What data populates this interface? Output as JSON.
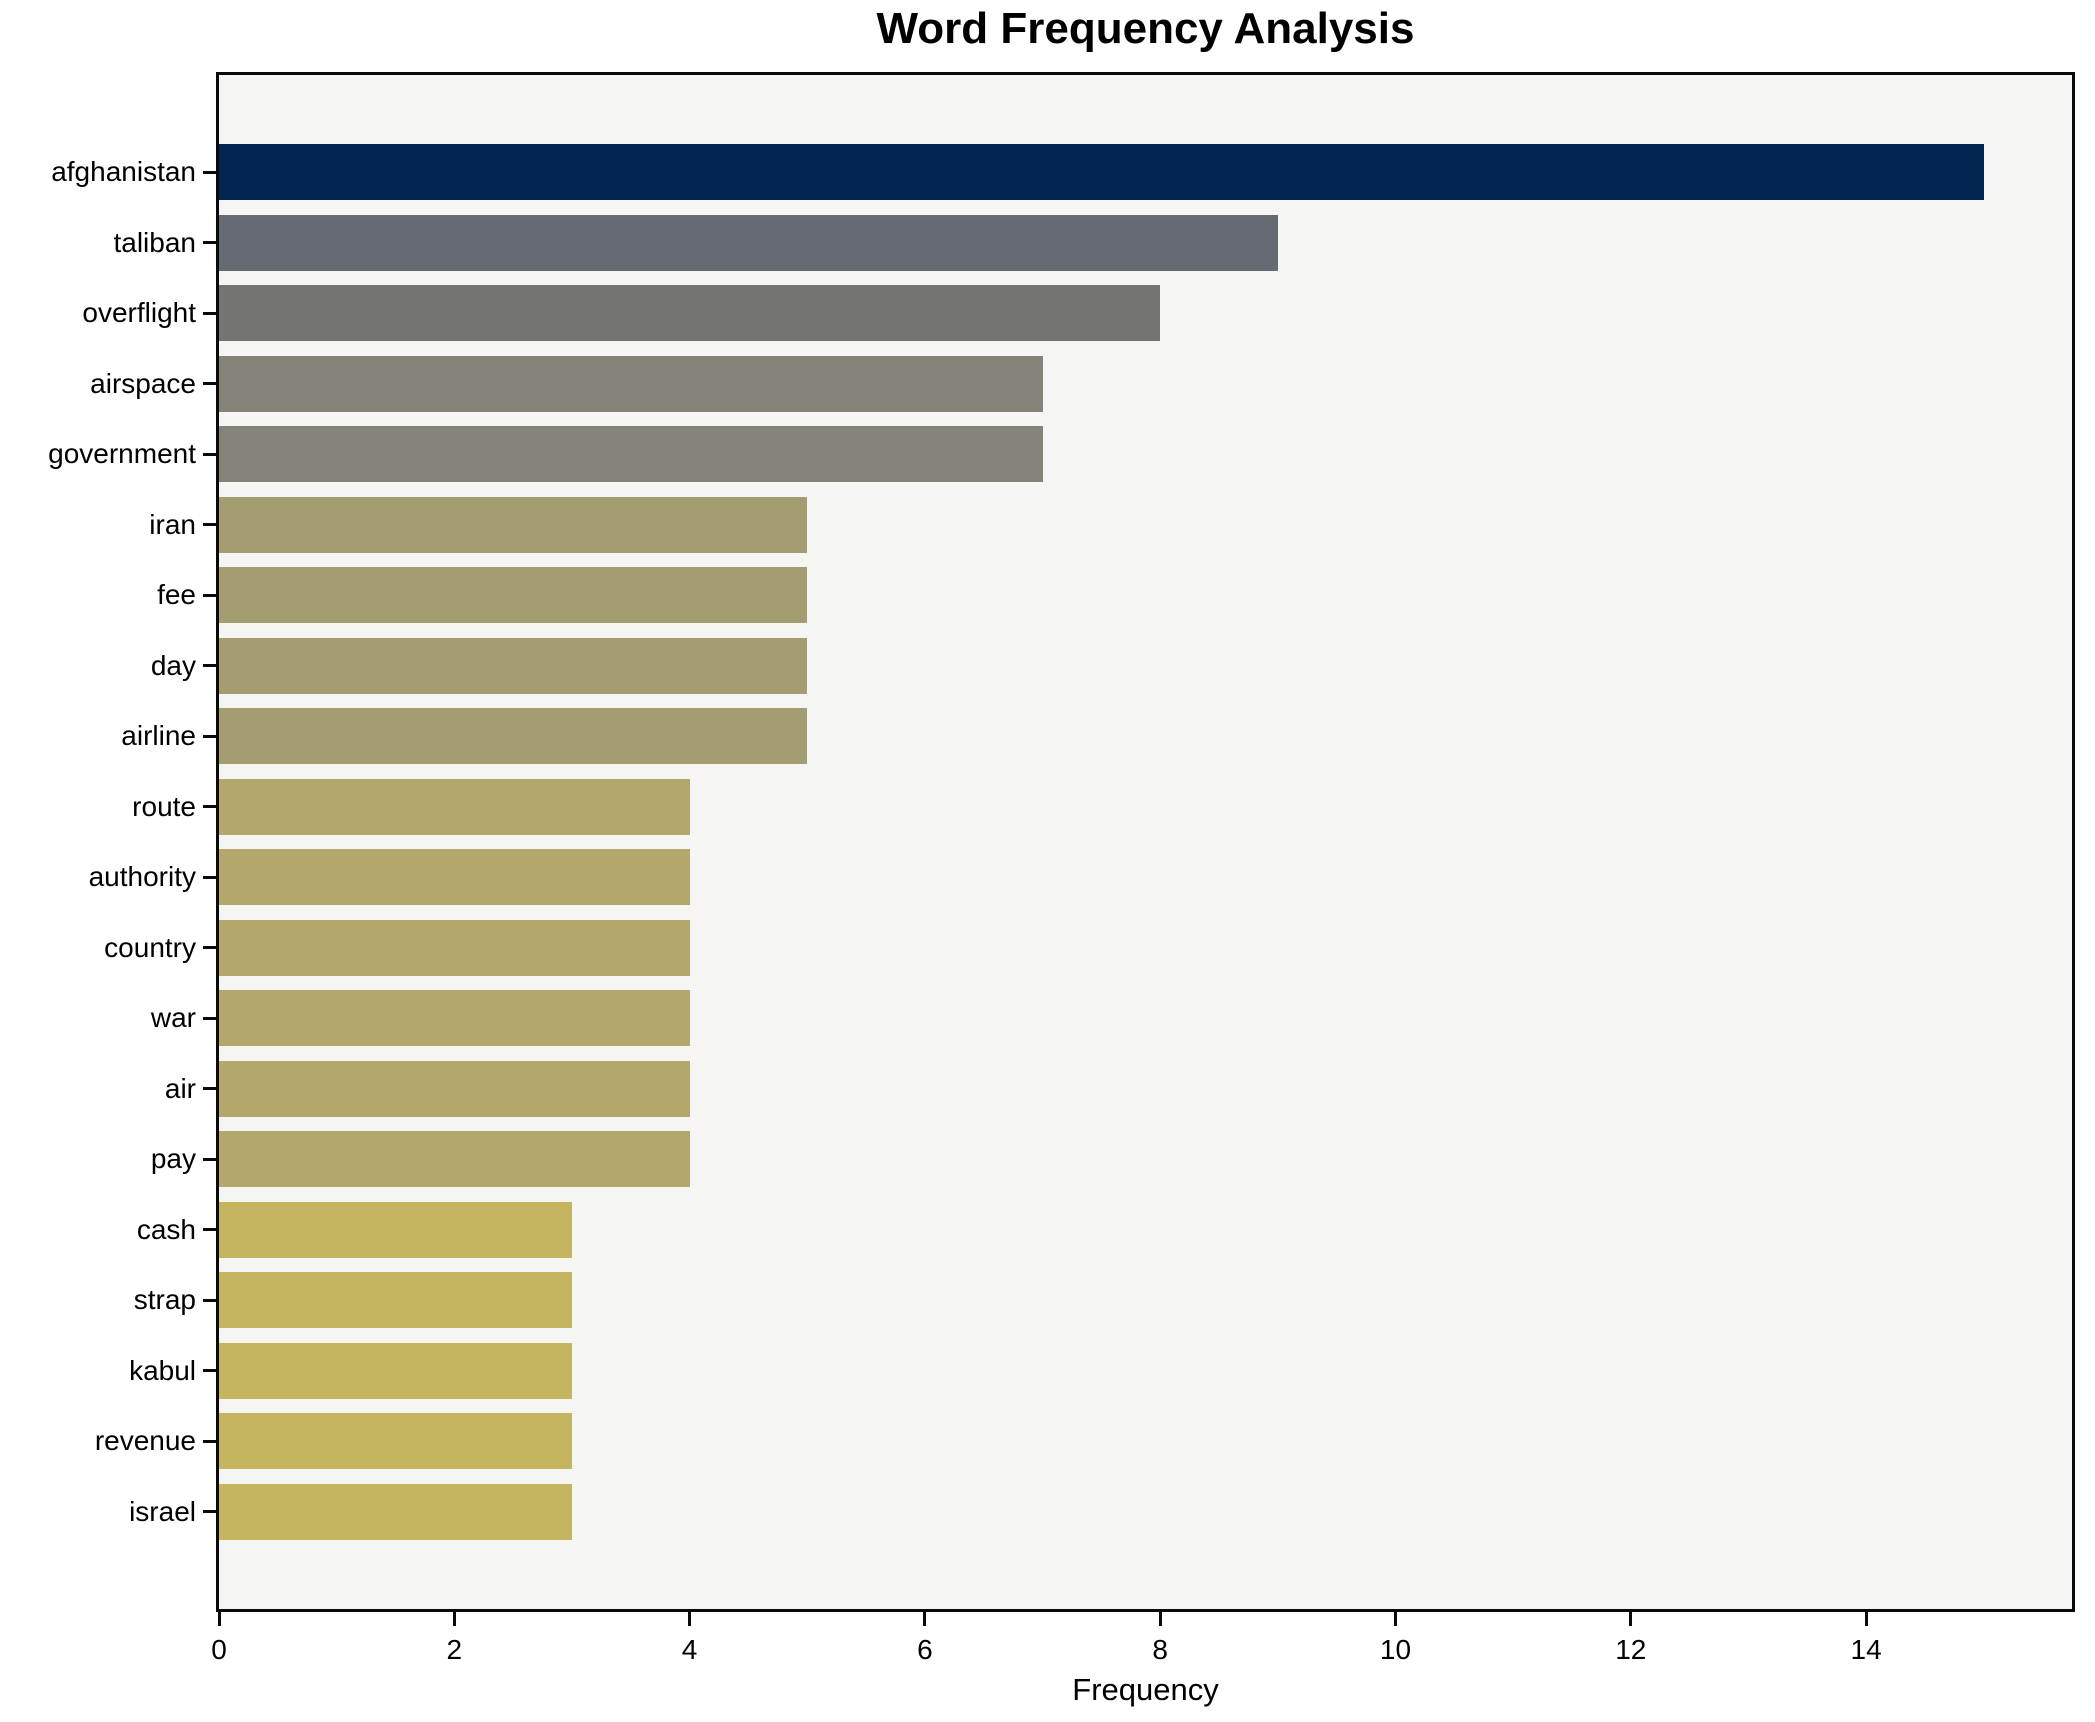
{
  "chart_data": {
    "type": "bar",
    "orientation": "horizontal",
    "title": "Word Frequency Analysis",
    "xlabel": "Frequency",
    "ylabel": "",
    "categories": [
      "afghanistan",
      "taliban",
      "overflight",
      "airspace",
      "government",
      "iran",
      "fee",
      "day",
      "airline",
      "route",
      "authority",
      "country",
      "war",
      "air",
      "pay",
      "cash",
      "strap",
      "kabul",
      "revenue",
      "israel"
    ],
    "values": [
      15,
      9,
      8,
      7,
      7,
      5,
      5,
      5,
      5,
      4,
      4,
      4,
      4,
      4,
      4,
      3,
      3,
      3,
      3,
      3
    ],
    "bar_colors": [
      "#03244e",
      "#666a72",
      "#747473",
      "#858278",
      "#858278",
      "#a49d72",
      "#a49d72",
      "#a49d72",
      "#a49d72",
      "#b3a76b",
      "#b3a76b",
      "#b3a76b",
      "#b3a76b",
      "#b3a76b",
      "#b3a76b",
      "#c6b560",
      "#c6b560",
      "#c6b560",
      "#c6b560",
      "#c6b560"
    ],
    "xlim": [
      0,
      15.75
    ],
    "xticks": [
      0,
      2,
      4,
      6,
      8,
      10,
      12,
      14
    ],
    "grid": false,
    "legend": "none",
    "plot_bg": "#f5f5f3",
    "figure_bg": "#ffffff",
    "spine_color": "#0a0a0a",
    "text_color": "#000000"
  }
}
